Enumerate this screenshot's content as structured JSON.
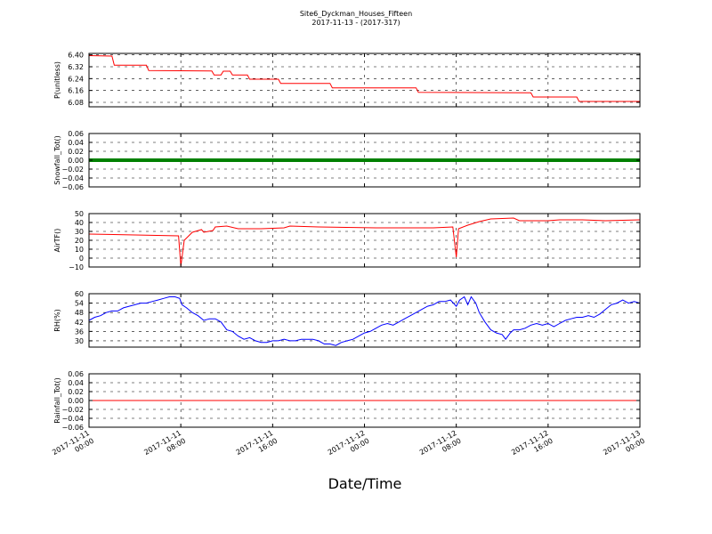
{
  "title": "Site6_Dyckman_Houses_Fifteen",
  "subtitle": "2017-11-13 - (2017-317)",
  "chart_data": {
    "type": "line",
    "xlabel": "Date/Time",
    "x_ticks": [
      "2017-11-11 00:00",
      "2017-11-11 08:00",
      "2017-11-11 16:00",
      "2017-11-12 00:00",
      "2017-11-12 08:00",
      "2017-11-12 16:00",
      "2017-11-13 00:00"
    ],
    "x_tick_lines": [
      [
        "2017-11-11",
        "00:00"
      ],
      [
        "2017-11-11",
        "08:00"
      ],
      [
        "2017-11-11",
        "16:00"
      ],
      [
        "2017-11-12",
        "00:00"
      ],
      [
        "2017-11-12",
        "08:00"
      ],
      [
        "2017-11-12",
        "16:00"
      ],
      [
        "2017-11-13",
        "00:00"
      ]
    ],
    "xlim_hours": [
      0,
      48
    ],
    "grid": true,
    "panels": [
      {
        "ylabel": "P(unitless)",
        "color": "#ff0000",
        "ylim": [
          6.05,
          6.41
        ],
        "yticks": [
          "6.40",
          "6.32",
          "6.24",
          "6.16",
          "6.08"
        ],
        "ytick_values": [
          6.4,
          6.32,
          6.24,
          6.16,
          6.08
        ],
        "points": [
          [
            0,
            6.395
          ],
          [
            2,
            6.392
          ],
          [
            2.2,
            6.33
          ],
          [
            5,
            6.33
          ],
          [
            5.2,
            6.295
          ],
          [
            10.7,
            6.292
          ],
          [
            10.9,
            6.265
          ],
          [
            11.5,
            6.265
          ],
          [
            11.7,
            6.29
          ],
          [
            12.3,
            6.29
          ],
          [
            12.5,
            6.264
          ],
          [
            13.8,
            6.264
          ],
          [
            14,
            6.236
          ],
          [
            16.5,
            6.236
          ],
          [
            16.7,
            6.208
          ],
          [
            21,
            6.208
          ],
          [
            21.2,
            6.178
          ],
          [
            28.5,
            6.178
          ],
          [
            28.7,
            6.148
          ],
          [
            38.5,
            6.145
          ],
          [
            38.7,
            6.116
          ],
          [
            42.5,
            6.116
          ],
          [
            42.7,
            6.086
          ],
          [
            48,
            6.086
          ]
        ]
      },
      {
        "ylabel": "Snowfall_Tot()",
        "color": "#008000",
        "ylim": [
          -0.06,
          0.06
        ],
        "yticks": [
          "0.06",
          "0.04",
          "0.02",
          "0.00",
          "−0.02",
          "−0.04",
          "−0.06"
        ],
        "ytick_values": [
          0.06,
          0.04,
          0.02,
          0.0,
          -0.02,
          -0.04,
          -0.06
        ],
        "line_width": 4,
        "points": [
          [
            0,
            0
          ],
          [
            48,
            0
          ]
        ]
      },
      {
        "ylabel": "AirTF()",
        "color": "#ff0000",
        "ylim": [
          -10,
          50
        ],
        "yticks": [
          "50",
          "40",
          "30",
          "20",
          "10",
          "0",
          "−10"
        ],
        "ytick_values": [
          50,
          40,
          30,
          20,
          10,
          0,
          -10
        ],
        "points": [
          [
            0,
            27
          ],
          [
            4,
            26
          ],
          [
            7.8,
            25
          ],
          [
            8,
            -9
          ],
          [
            8.3,
            20
          ],
          [
            9,
            29
          ],
          [
            9.8,
            32
          ],
          [
            10,
            29
          ],
          [
            10.8,
            31
          ],
          [
            11,
            35
          ],
          [
            12,
            36
          ],
          [
            13,
            33
          ],
          [
            15,
            33
          ],
          [
            17,
            34
          ],
          [
            17.5,
            36
          ],
          [
            20,
            35
          ],
          [
            25,
            34
          ],
          [
            30,
            34
          ],
          [
            31.7,
            35
          ],
          [
            32,
            1
          ],
          [
            32.2,
            33
          ],
          [
            33,
            37
          ],
          [
            34,
            41
          ],
          [
            35,
            44
          ],
          [
            37,
            45
          ],
          [
            37.5,
            42
          ],
          [
            40,
            42
          ],
          [
            41,
            43
          ],
          [
            43,
            43
          ],
          [
            45,
            42
          ],
          [
            48,
            43
          ]
        ]
      },
      {
        "ylabel": "RH(%)",
        "color": "#0000ff",
        "ylim": [
          26,
          60
        ],
        "yticks": [
          "60",
          "54",
          "48",
          "42",
          "36",
          "30"
        ],
        "ytick_values": [
          60,
          54,
          48,
          42,
          36,
          30
        ],
        "points": [
          [
            0,
            43
          ],
          [
            0.5,
            45
          ],
          [
            1,
            46
          ],
          [
            1.5,
            48
          ],
          [
            2,
            49
          ],
          [
            2.5,
            49
          ],
          [
            3,
            51
          ],
          [
            3.5,
            52
          ],
          [
            4,
            53
          ],
          [
            4.5,
            54
          ],
          [
            5,
            54
          ],
          [
            5.5,
            55
          ],
          [
            6,
            56
          ],
          [
            6.5,
            57
          ],
          [
            7,
            58
          ],
          [
            7.5,
            58
          ],
          [
            7.9,
            57
          ],
          [
            8.1,
            53
          ],
          [
            8.5,
            51
          ],
          [
            9,
            48
          ],
          [
            9.5,
            46
          ],
          [
            10,
            43
          ],
          [
            10.5,
            44
          ],
          [
            11,
            44
          ],
          [
            11.5,
            42
          ],
          [
            12,
            37
          ],
          [
            12.5,
            36
          ],
          [
            13,
            33
          ],
          [
            13.5,
            31
          ],
          [
            14,
            32
          ],
          [
            14.5,
            30
          ],
          [
            15,
            29
          ],
          [
            15.5,
            29
          ],
          [
            16,
            30
          ],
          [
            16.5,
            30
          ],
          [
            17,
            31
          ],
          [
            17.5,
            30
          ],
          [
            18,
            30
          ],
          [
            18.5,
            31
          ],
          [
            19,
            31
          ],
          [
            19.5,
            31
          ],
          [
            20,
            30
          ],
          [
            20.5,
            28
          ],
          [
            21,
            28
          ],
          [
            21.5,
            27
          ],
          [
            22,
            29
          ],
          [
            22.5,
            30
          ],
          [
            23,
            31
          ],
          [
            23.5,
            33
          ],
          [
            24,
            35
          ],
          [
            24.5,
            36
          ],
          [
            25,
            38
          ],
          [
            25.5,
            40
          ],
          [
            26,
            41
          ],
          [
            26.5,
            40
          ],
          [
            27,
            42
          ],
          [
            27.5,
            44
          ],
          [
            28,
            46
          ],
          [
            28.5,
            48
          ],
          [
            29,
            50
          ],
          [
            29.5,
            52
          ],
          [
            30,
            53
          ],
          [
            30.5,
            55
          ],
          [
            31,
            55
          ],
          [
            31.5,
            56
          ],
          [
            32,
            52
          ],
          [
            32.3,
            56
          ],
          [
            32.7,
            58
          ],
          [
            33,
            53
          ],
          [
            33.3,
            58
          ],
          [
            33.7,
            54
          ],
          [
            34,
            48
          ],
          [
            34.5,
            42
          ],
          [
            35,
            37
          ],
          [
            35.5,
            35
          ],
          [
            36,
            34
          ],
          [
            36.3,
            31
          ],
          [
            36.7,
            35
          ],
          [
            37,
            37
          ],
          [
            37.5,
            37
          ],
          [
            38,
            38
          ],
          [
            38.5,
            40
          ],
          [
            39,
            41
          ],
          [
            39.5,
            40
          ],
          [
            40,
            41
          ],
          [
            40.5,
            39
          ],
          [
            41,
            41
          ],
          [
            41.5,
            43
          ],
          [
            42,
            44
          ],
          [
            42.5,
            45
          ],
          [
            43,
            45
          ],
          [
            43.5,
            46
          ],
          [
            44,
            45
          ],
          [
            44.5,
            47
          ],
          [
            45,
            50
          ],
          [
            45.5,
            53
          ],
          [
            46,
            54
          ],
          [
            46.5,
            56
          ],
          [
            47,
            54
          ],
          [
            47.5,
            55
          ],
          [
            48,
            54
          ]
        ]
      },
      {
        "ylabel": "Rainfall_Tot()",
        "color": "#ff0000",
        "ylim": [
          -0.06,
          0.06
        ],
        "yticks": [
          "0.06",
          "0.04",
          "0.02",
          "0.00",
          "−0.02",
          "−0.04",
          "−0.06"
        ],
        "ytick_values": [
          0.06,
          0.04,
          0.02,
          0.0,
          -0.02,
          -0.04,
          -0.06
        ],
        "points": [
          [
            0,
            0
          ],
          [
            48,
            0
          ]
        ]
      }
    ]
  }
}
